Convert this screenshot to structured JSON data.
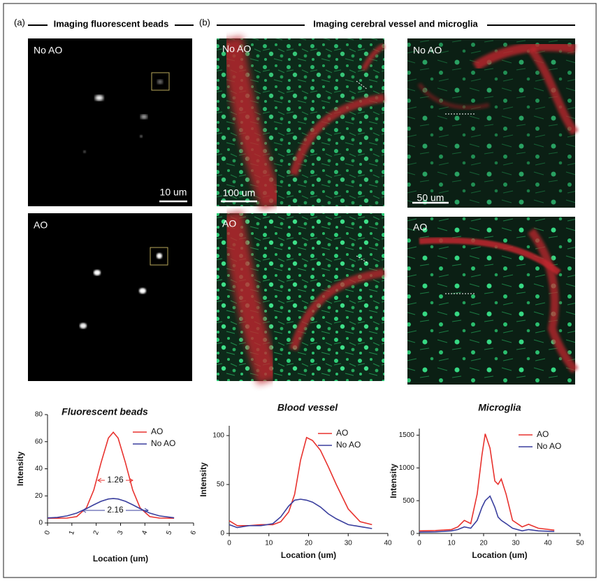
{
  "panels": {
    "a": {
      "label": "(a)",
      "title": "Imaging fluorescent beads",
      "images": [
        {
          "label": "No AO",
          "scale": "10 um"
        },
        {
          "label": "AO"
        }
      ]
    },
    "b": {
      "label": "(b)",
      "title": "Imaging cerebral vessel and microglia",
      "images": [
        {
          "label": "No AO",
          "scale": "100 um"
        },
        {
          "label": "AO"
        },
        {
          "label": "No AO",
          "scale": "50 um"
        },
        {
          "label": "AO"
        }
      ]
    }
  },
  "chart_data": [
    {
      "type": "line",
      "title": "Fluorescent beads",
      "xlabel": "Location (um)",
      "ylabel": "Intensity",
      "x": [
        0,
        0.4,
        0.8,
        1.2,
        1.6,
        1.9,
        2.2,
        2.5,
        2.7,
        2.9,
        3.2,
        3.5,
        3.8,
        4.2,
        4.6,
        5.2
      ],
      "series": [
        {
          "name": "AO",
          "color": "#e8322e",
          "values": [
            3.5,
            3.5,
            3.6,
            4.7,
            11.2,
            24.3,
            44.5,
            62.7,
            67,
            62.7,
            44.5,
            24.3,
            11.2,
            4.7,
            3.6,
            3.5
          ]
        },
        {
          "name": "No AO",
          "color": "#3a3f9e",
          "values": [
            3.7,
            4.1,
            5.2,
            7.3,
            10.6,
            13.4,
            16.0,
            17.7,
            18,
            17.7,
            16.0,
            13.4,
            10.6,
            7.3,
            5.2,
            3.8
          ]
        }
      ],
      "annotations": [
        {
          "text": "1.26",
          "color": "#e8322e"
        },
        {
          "text": "2.16",
          "color": "#3a3f9e"
        }
      ],
      "xlim": [
        0,
        6
      ],
      "xticks": [
        0,
        1,
        2,
        3,
        4,
        5,
        6
      ],
      "ylim": [
        0,
        80
      ],
      "yticks": [
        0,
        20,
        40,
        60,
        80
      ]
    },
    {
      "type": "line",
      "title": "Blood vessel",
      "xlabel": "Location (um)",
      "ylabel": "Intensity",
      "x": [
        0,
        2,
        5,
        8,
        11,
        13,
        15,
        16.5,
        18,
        19.5,
        21,
        23,
        25,
        27,
        30,
        33,
        36
      ],
      "series": [
        {
          "name": "AO",
          "color": "#e8322e",
          "values": [
            13,
            8,
            8,
            9,
            9,
            12,
            22,
            40,
            75,
            98,
            95,
            85,
            68,
            50,
            25,
            12,
            9
          ]
        },
        {
          "name": "No AO",
          "color": "#3a3f9e",
          "values": [
            9,
            6,
            8,
            8,
            10,
            17,
            28,
            34,
            35,
            34,
            32,
            27,
            20,
            15,
            9,
            7,
            5
          ]
        }
      ],
      "xlim": [
        0,
        40
      ],
      "xticks": [
        0,
        10,
        20,
        30,
        40
      ],
      "ylim": [
        0,
        110
      ],
      "yticks": [
        0,
        50,
        100
      ]
    },
    {
      "type": "line",
      "title": "Microglia",
      "xlabel": "Location (um)",
      "ylabel": "Intensity",
      "x": [
        0,
        5,
        10,
        12,
        14,
        16,
        18,
        19.5,
        20.5,
        22,
        23.5,
        24.5,
        25.5,
        27,
        29,
        32,
        34,
        37,
        42
      ],
      "series": [
        {
          "name": "AO",
          "color": "#e8322e",
          "values": [
            40,
            45,
            60,
            100,
            200,
            150,
            600,
            1200,
            1520,
            1300,
            800,
            750,
            830,
            600,
            200,
            100,
            140,
            80,
            50
          ]
        },
        {
          "name": "No AO",
          "color": "#3a3f9e",
          "values": [
            20,
            25,
            40,
            60,
            100,
            80,
            200,
            400,
            500,
            570,
            400,
            250,
            200,
            150,
            80,
            40,
            60,
            40,
            30
          ]
        }
      ],
      "xlim": [
        0,
        50
      ],
      "xticks": [
        0,
        10,
        20,
        30,
        40,
        50
      ],
      "ylim": [
        0,
        1600
      ],
      "yticks": [
        0,
        500,
        1000,
        1500
      ]
    }
  ]
}
